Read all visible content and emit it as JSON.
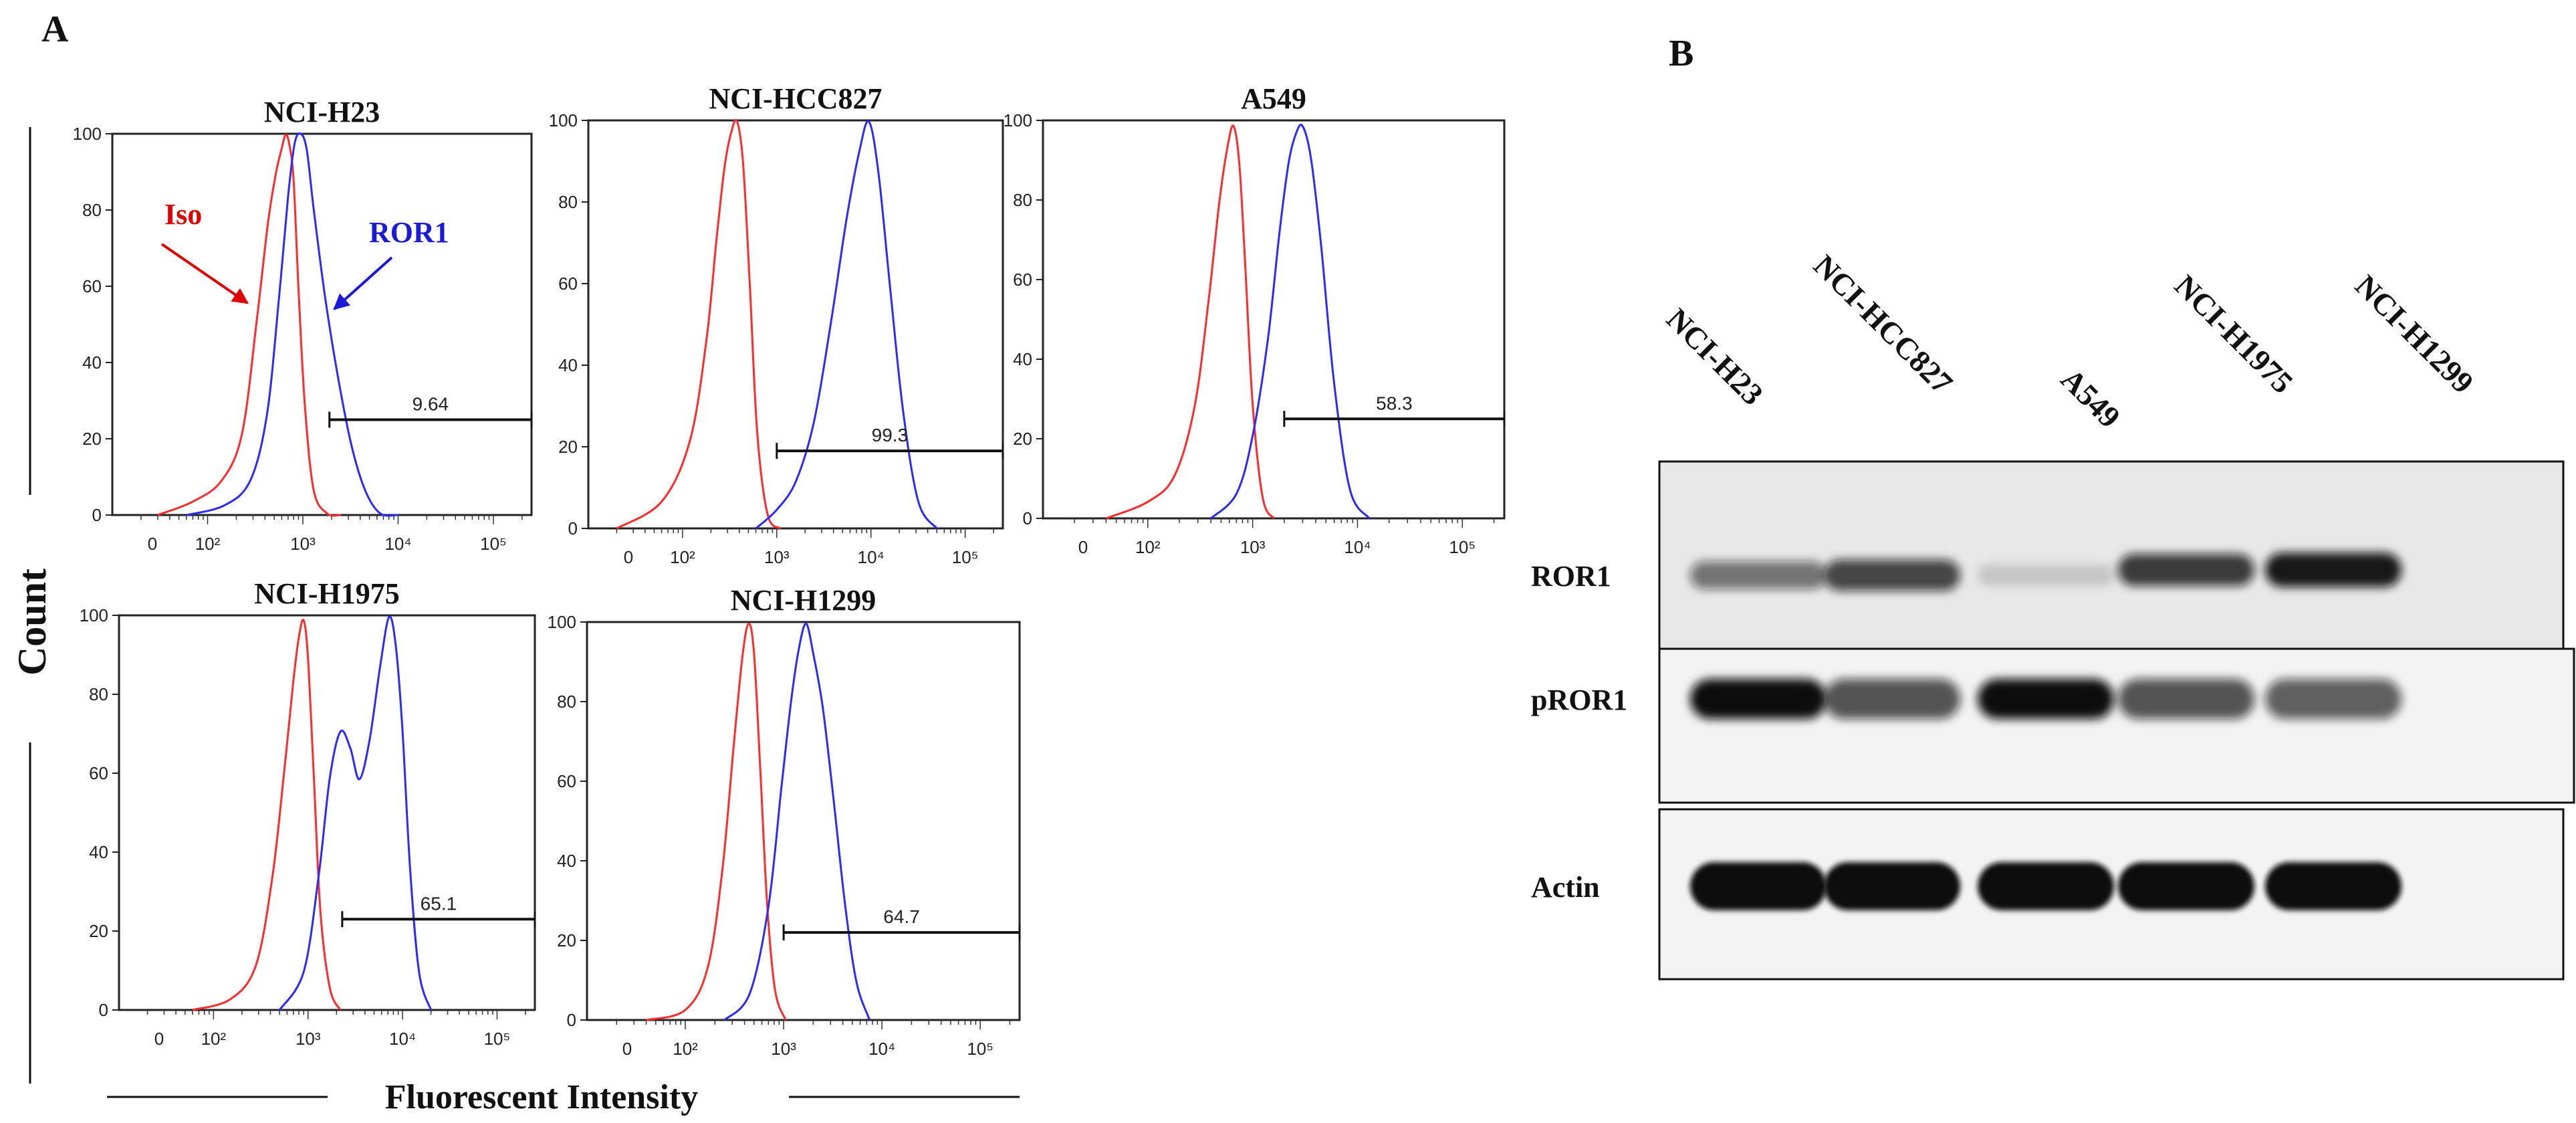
{
  "panel_a": {
    "label": "A",
    "y_axis_label": "Count",
    "x_axis_label": "Fluorescent Intensity",
    "annotations": {
      "iso_label": "Iso",
      "ror1_label": "ROR1"
    },
    "colors": {
      "iso": "#ff2a2a",
      "ror1": "#2a2aff",
      "annotation_iso": "#e00000",
      "annotation_ror1": "#1a1ad8"
    },
    "y_ticks": [
      "0",
      "20",
      "40",
      "60",
      "80",
      "100"
    ],
    "x_ticks": [
      "0",
      "10²",
      "10³",
      "10⁴",
      "10⁵"
    ]
  },
  "chart_data": [
    {
      "type": "line",
      "title": "NCI-H23",
      "xlabel": "Fluorescent Intensity",
      "ylabel": "Count",
      "x_scale": "log",
      "ylim": [
        0,
        100
      ],
      "x_ticks": [
        "0",
        "10²",
        "10³",
        "10⁴",
        "10⁵"
      ],
      "series": [
        {
          "name": "Iso",
          "color": "#ff2a2a",
          "x": [
            30,
            70,
            140,
            230,
            330,
            430,
            520,
            600,
            660,
            720,
            800,
            900,
            1050,
            1300,
            1800,
            2500
          ],
          "y": [
            0,
            3,
            8,
            20,
            50,
            75,
            88,
            95,
            99,
            97,
            88,
            60,
            30,
            8,
            2,
            0
          ]
        },
        {
          "name": "ROR1",
          "color": "#2a2aff",
          "x": [
            60,
            150,
            280,
            420,
            560,
            700,
            820,
            950,
            1100,
            1300,
            1700,
            2300,
            3200,
            4500,
            6500,
            10000
          ],
          "y": [
            0,
            2,
            8,
            25,
            55,
            82,
            96,
            100,
            95,
            80,
            58,
            38,
            20,
            8,
            2,
            0
          ]
        }
      ],
      "gate": {
        "x_start": 1900,
        "x_end": 250000,
        "y": 25,
        "label": "9.64"
      }
    },
    {
      "type": "line",
      "title": "NCI-HCC827",
      "xlabel": "Fluorescent Intensity",
      "ylabel": "Count",
      "x_scale": "log",
      "ylim": [
        0,
        100
      ],
      "x_ticks": [
        "0",
        "10²",
        "10³",
        "10⁴",
        "10⁵"
      ],
      "series": [
        {
          "name": "Iso",
          "color": "#ff2a2a",
          "x": [
            20,
            60,
            120,
            180,
            230,
            280,
            330,
            380,
            440,
            520,
            620,
            800,
            1100
          ],
          "y": [
            0,
            5,
            20,
            45,
            70,
            88,
            97,
            100,
            90,
            60,
            25,
            5,
            0
          ]
        },
        {
          "name": "ROR1",
          "color": "#2a2aff",
          "x": [
            600,
            1000,
            1600,
            2500,
            3800,
            5500,
            7500,
            9500,
            12000,
            16000,
            22000,
            32000,
            50000
          ],
          "y": [
            0,
            3,
            10,
            25,
            50,
            75,
            92,
            100,
            88,
            60,
            30,
            8,
            0
          ]
        }
      ],
      "gate": {
        "x_start": 1000,
        "x_end": 250000,
        "y": 19,
        "label": "99.3"
      }
    },
    {
      "type": "line",
      "title": "A549",
      "xlabel": "Fluorescent Intensity",
      "ylabel": "Count",
      "x_scale": "log",
      "ylim": [
        0,
        100
      ],
      "x_ticks": [
        "0",
        "10²",
        "10³",
        "10⁴",
        "10⁵"
      ],
      "series": [
        {
          "name": "Iso",
          "color": "#ff2a2a",
          "x": [
            40,
            100,
            180,
            280,
            380,
            480,
            580,
            660,
            750,
            850,
            1000,
            1250,
            1600
          ],
          "y": [
            0,
            3,
            10,
            28,
            55,
            80,
            95,
            100,
            90,
            65,
            30,
            6,
            0
          ]
        },
        {
          "name": "ROR1",
          "color": "#2a2aff",
          "x": [
            400,
            700,
            1000,
            1400,
            1800,
            2200,
            2600,
            3000,
            3600,
            4500,
            6000,
            8500,
            13000
          ],
          "y": [
            0,
            5,
            20,
            45,
            72,
            90,
            98,
            100,
            92,
            70,
            35,
            8,
            0
          ]
        }
      ],
      "gate": {
        "x_start": 2000,
        "x_end": 250000,
        "y": 25,
        "label": "58.3"
      }
    },
    {
      "type": "line",
      "title": "NCI-H1975",
      "xlabel": "Fluorescent Intensity",
      "ylabel": "Count",
      "x_scale": "log",
      "ylim": [
        0,
        100
      ],
      "x_ticks": [
        "0",
        "10²",
        "10³",
        "10⁴",
        "10⁵"
      ],
      "series": [
        {
          "name": "Iso",
          "color": "#ff2a2a",
          "x": [
            60,
            150,
            280,
            420,
            560,
            700,
            800,
            900,
            1000,
            1150,
            1350,
            1700,
            2200
          ],
          "y": [
            0,
            3,
            12,
            35,
            62,
            85,
            96,
            100,
            90,
            60,
            25,
            5,
            0
          ]
        },
        {
          "name": "ROR1",
          "color": "#2a2aff",
          "x": [
            500,
            900,
            1300,
            1700,
            2200,
            2800,
            3500,
            4500,
            5800,
            7200,
            8500,
            10000,
            12000,
            15000,
            20000
          ],
          "y": [
            0,
            10,
            35,
            60,
            72,
            68,
            60,
            70,
            88,
            100,
            92,
            70,
            35,
            8,
            0
          ]
        }
      ],
      "gate": {
        "x_start": 2300,
        "x_end": 250000,
        "y": 23,
        "label": "65.1"
      }
    },
    {
      "type": "line",
      "title": "NCI-H1299",
      "xlabel": "Fluorescent Intensity",
      "ylabel": "Count",
      "x_scale": "log",
      "ylim": [
        0,
        100
      ],
      "x_ticks": [
        "0",
        "10²",
        "10³",
        "10⁴",
        "10⁵"
      ],
      "series": [
        {
          "name": "Iso",
          "color": "#ff2a2a",
          "x": [
            40,
            100,
            170,
            240,
            310,
            380,
            440,
            500,
            580,
            680,
            820,
            1050
          ],
          "y": [
            0,
            4,
            15,
            40,
            70,
            92,
            100,
            92,
            62,
            28,
            6,
            0
          ]
        },
        {
          "name": "ROR1",
          "color": "#2a2aff",
          "x": [
            250,
            450,
            700,
            950,
            1200,
            1450,
            1700,
            2000,
            2500,
            3200,
            4200,
            5500,
            7500
          ],
          "y": [
            0,
            8,
            30,
            60,
            82,
            95,
            100,
            92,
            78,
            55,
            28,
            8,
            0
          ]
        }
      ],
      "gate": {
        "x_start": 1000,
        "x_end": 250000,
        "y": 22,
        "label": "64.7"
      }
    }
  ],
  "panel_b": {
    "label": "B",
    "lanes": [
      "NCI-H23",
      "NCI-HCC827",
      "A549",
      "NCI-H1975",
      "NCI-H1299"
    ],
    "blots": [
      {
        "label": "ROR1",
        "band_intensity": [
          0.55,
          0.75,
          0.15,
          0.8,
          0.95
        ]
      },
      {
        "label": "pROR1",
        "band_intensity": [
          1.0,
          0.7,
          1.0,
          0.7,
          0.65
        ]
      },
      {
        "label": "Actin",
        "band_intensity": [
          1.0,
          1.0,
          1.0,
          1.0,
          1.0
        ]
      }
    ]
  }
}
